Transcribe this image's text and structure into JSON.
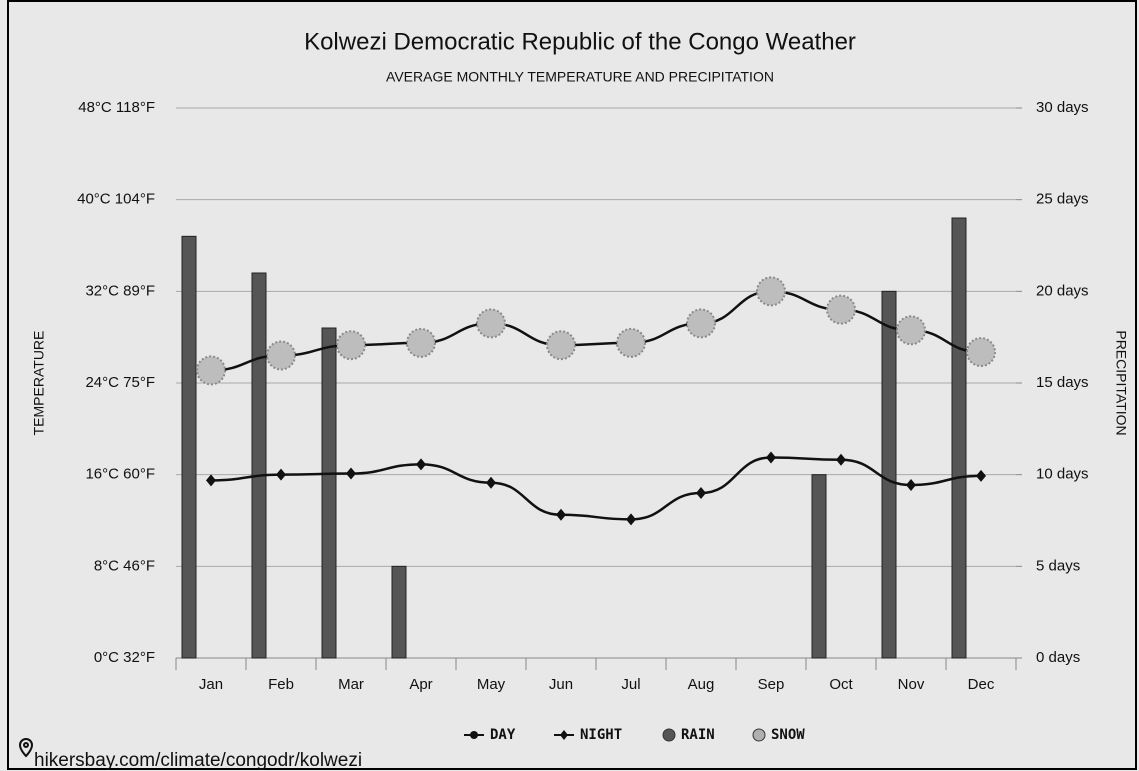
{
  "chart_data": {
    "type": "combo",
    "title": "Kolwezi Democratic Republic of the Congo Weather",
    "subtitle": "AVERAGE MONTHLY TEMPERATURE AND PRECIPITATION",
    "y_label": "TEMPERATURE",
    "y2_label": "PRECIPITATION",
    "source": "hikersbay.com/climate/congodr/kolwezi",
    "categories": [
      "Jan",
      "Feb",
      "Mar",
      "Apr",
      "May",
      "Jun",
      "Jul",
      "Aug",
      "Sep",
      "Oct",
      "Nov",
      "Dec"
    ],
    "ylim": [
      0,
      48
    ],
    "yticks": [
      {
        "value": 0,
        "label": "0°C 32°F"
      },
      {
        "value": 8,
        "label": "8°C 46°F"
      },
      {
        "value": 16,
        "label": "16°C 60°F"
      },
      {
        "value": 24,
        "label": "24°C 75°F"
      },
      {
        "value": 32,
        "label": "32°C 89°F"
      },
      {
        "value": 40,
        "label": "40°C 104°F"
      },
      {
        "value": 48,
        "label": "48°C 118°F"
      }
    ],
    "y2lim": [
      0,
      30
    ],
    "y2ticks": [
      {
        "value": 0,
        "label": "0 days"
      },
      {
        "value": 5,
        "label": "5 days"
      },
      {
        "value": 10,
        "label": "10 days"
      },
      {
        "value": 15,
        "label": "15 days"
      },
      {
        "value": 20,
        "label": "20 days"
      },
      {
        "value": 25,
        "label": "25 days"
      },
      {
        "value": 30,
        "label": "30 days"
      }
    ],
    "grid": true,
    "series": [
      {
        "name": "DAY",
        "kind": "line",
        "marker": "circle",
        "color": "#111111",
        "values": [
          25.1,
          26.4,
          27.3,
          27.5,
          29.2,
          27.3,
          27.5,
          29.2,
          32.0,
          30.4,
          28.6,
          26.7
        ]
      },
      {
        "name": "NIGHT",
        "kind": "line",
        "marker": "diamond",
        "color": "#111111",
        "values": [
          15.5,
          16.0,
          16.1,
          16.9,
          15.3,
          12.5,
          12.1,
          14.4,
          17.5,
          17.3,
          15.1,
          15.9
        ]
      },
      {
        "name": "RAIN",
        "kind": "bar",
        "axis": "y2",
        "color": "#555555",
        "values": [
          23,
          21,
          18,
          5,
          0,
          0,
          0,
          0,
          0,
          10,
          20,
          24
        ]
      },
      {
        "name": "SNOW",
        "kind": "bar",
        "axis": "y2",
        "color": "#b0b0b0",
        "values": [
          0,
          0,
          0,
          0,
          0,
          0,
          0,
          0,
          0,
          0,
          0,
          0
        ]
      }
    ]
  }
}
